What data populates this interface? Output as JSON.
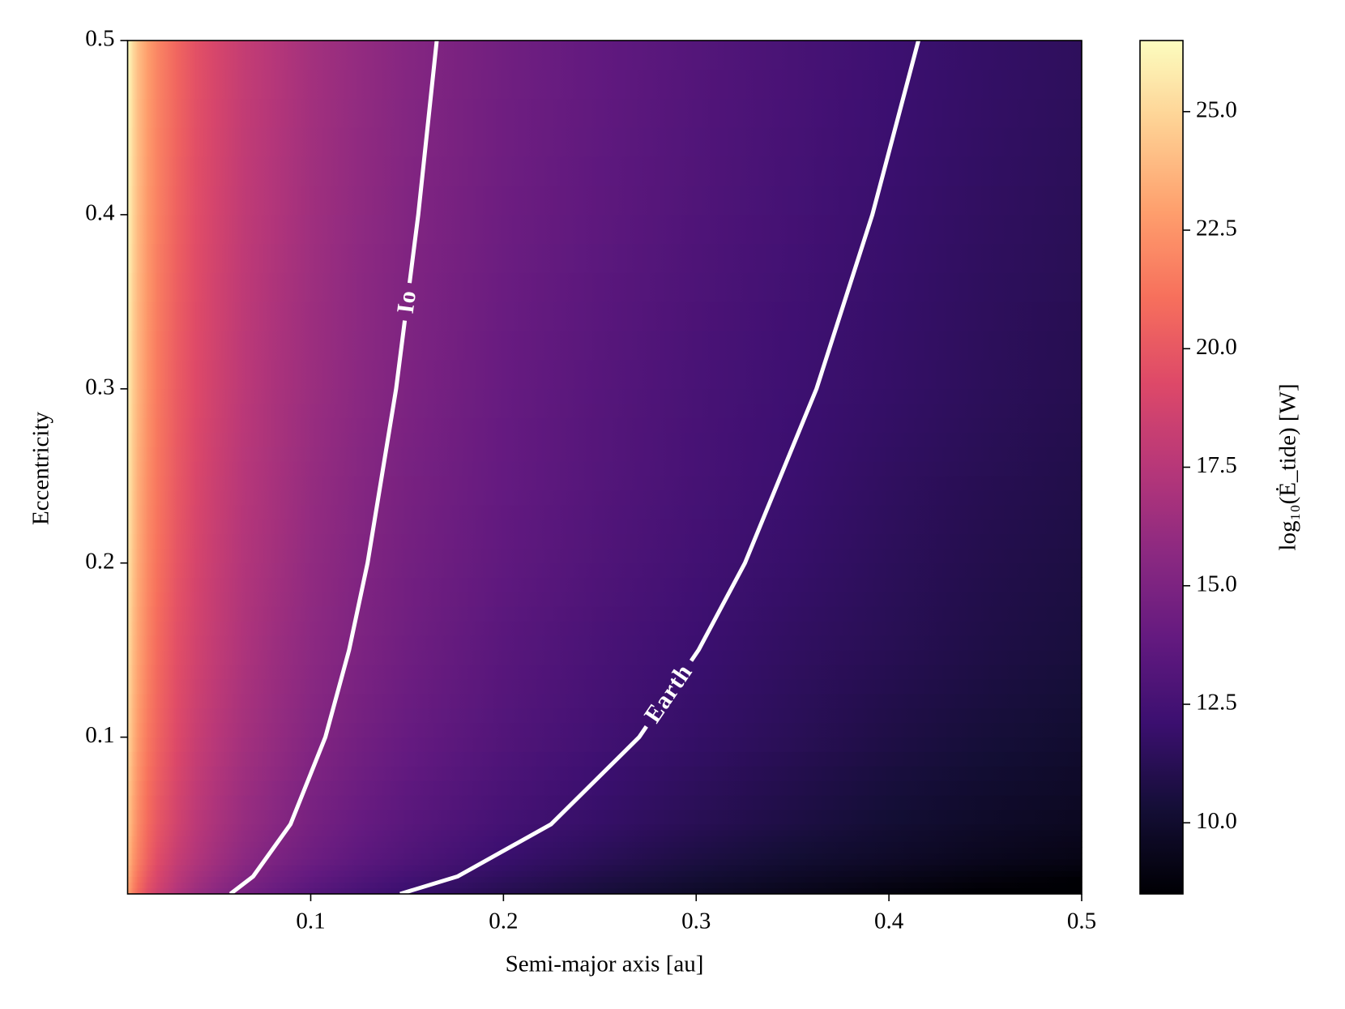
{
  "chart_data": {
    "type": "heatmap",
    "x_label": "Semi-major axis [au]",
    "y_label": "Eccentricity",
    "x": [
      0.005,
      0.0075,
      0.01,
      0.015,
      0.02,
      0.03,
      0.04,
      0.05,
      0.065,
      0.08,
      0.1,
      0.125,
      0.15,
      0.2,
      0.25,
      0.3,
      0.35,
      0.4,
      0.45,
      0.5
    ],
    "y": [
      0.01,
      0.03,
      0.05,
      0.1,
      0.15,
      0.2,
      0.25,
      0.3,
      0.4,
      0.5
    ],
    "z": [
      [
        23.1,
        21.8,
        20.8,
        19.5,
        18.6,
        17.3,
        16.3,
        15.6,
        14.7,
        14.1,
        13.3,
        12.6,
        12.0,
        11.1,
        10.4,
        9.8,
        9.3,
        8.8,
        8.4,
        8.1
      ],
      [
        24.1,
        22.7,
        21.8,
        20.5,
        19.5,
        18.2,
        17.3,
        16.6,
        15.7,
        15.0,
        14.3,
        13.6,
        13.0,
        12.0,
        11.3,
        10.7,
        10.2,
        9.8,
        9.4,
        9.1
      ],
      [
        24.5,
        23.2,
        22.2,
        20.9,
        20.0,
        18.7,
        17.7,
        17.0,
        16.1,
        15.5,
        14.7,
        14.0,
        13.4,
        12.5,
        11.8,
        11.2,
        10.7,
        10.2,
        9.8,
        9.5
      ],
      [
        25.1,
        23.8,
        22.8,
        21.5,
        20.6,
        19.3,
        18.3,
        17.6,
        16.7,
        16.1,
        15.3,
        14.6,
        14.0,
        13.1,
        12.4,
        11.8,
        11.3,
        10.8,
        10.4,
        10.1
      ],
      [
        25.5,
        24.1,
        23.2,
        21.9,
        20.9,
        19.6,
        18.7,
        18.0,
        17.1,
        16.4,
        15.7,
        15.0,
        14.4,
        13.4,
        12.7,
        12.1,
        11.6,
        11.2,
        10.8,
        10.5
      ],
      [
        25.7,
        24.4,
        23.4,
        22.1,
        21.2,
        19.9,
        18.9,
        18.2,
        17.3,
        16.7,
        15.9,
        15.2,
        14.6,
        13.7,
        13.0,
        12.4,
        11.9,
        11.4,
        11.0,
        10.7
      ],
      [
        25.9,
        24.6,
        23.6,
        22.3,
        21.4,
        20.1,
        19.1,
        18.4,
        17.5,
        16.9,
        16.1,
        15.4,
        14.8,
        13.9,
        13.2,
        12.6,
        12.1,
        11.6,
        11.2,
        10.9
      ],
      [
        26.1,
        24.7,
        23.8,
        22.5,
        21.5,
        20.2,
        19.3,
        18.6,
        17.7,
        17.0,
        16.3,
        15.6,
        15.0,
        14.0,
        13.3,
        12.7,
        12.2,
        11.8,
        11.4,
        11.1
      ],
      [
        26.3,
        25.0,
        24.0,
        22.7,
        21.8,
        20.5,
        19.5,
        18.8,
        17.9,
        17.3,
        16.5,
        15.8,
        15.2,
        14.3,
        13.6,
        13.0,
        12.5,
        12.0,
        11.6,
        11.3
      ],
      [
        26.5,
        25.2,
        24.2,
        22.9,
        22.0,
        20.7,
        19.7,
        19.0,
        18.1,
        17.5,
        16.7,
        16.0,
        15.4,
        14.5,
        13.8,
        13.2,
        12.7,
        12.2,
        11.8,
        11.5
      ]
    ],
    "xlim": [
      0.005,
      0.5
    ],
    "ylim": [
      0.01,
      0.5
    ],
    "xticks": [
      0.1,
      0.2,
      0.3,
      0.4,
      0.5
    ],
    "yticks": [
      0.1,
      0.2,
      0.3,
      0.4,
      0.5
    ],
    "colormap": "magma",
    "colorbar": {
      "label": "log₁₀(Ė_tide) [W]",
      "lim": [
        8.5,
        26.5
      ],
      "ticks": [
        {
          "value": 10,
          "label": "10.0"
        },
        {
          "value": 12.5,
          "label": "12.5"
        },
        {
          "value": 15,
          "label": "15.0"
        },
        {
          "value": 17.5,
          "label": "17.5"
        },
        {
          "value": 20,
          "label": "20.0"
        },
        {
          "value": 22.5,
          "label": "22.5"
        },
        {
          "value": 25,
          "label": "25.0"
        }
      ]
    },
    "contours": [
      {
        "name": "Io",
        "color": "#ffffff",
        "x": [
          0.0583,
          0.0701,
          0.0895,
          0.1076,
          0.1199,
          0.1295,
          0.1443,
          0.1558,
          0.1654
        ],
        "y": [
          0.01,
          0.02,
          0.05,
          0.1,
          0.15,
          0.2,
          0.3,
          0.4,
          0.5
        ]
      },
      {
        "name": "Earth",
        "color": "#ffffff",
        "x": [
          0.1464,
          0.1761,
          0.2247,
          0.2704,
          0.3012,
          0.3253,
          0.3624,
          0.3914,
          0.4153
        ],
        "y": [
          0.01,
          0.02,
          0.05,
          0.1,
          0.15,
          0.2,
          0.3,
          0.4,
          0.5
        ]
      }
    ]
  }
}
